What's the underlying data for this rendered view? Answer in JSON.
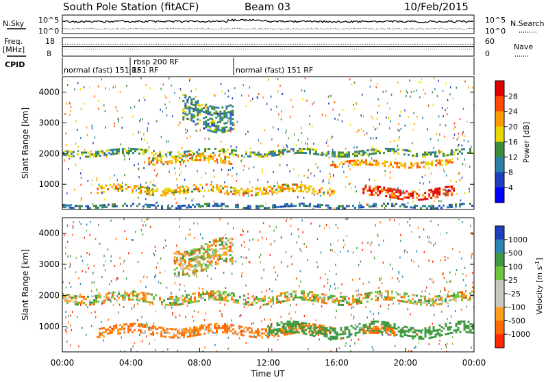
{
  "header": {
    "station": "South Pole Station (fitACF)",
    "beam": "Beam 03",
    "date": "10/Feb/2015"
  },
  "noise_panel": {
    "left_label": "N.Sky",
    "left_top_tick": "10^5",
    "left_bottom_tick": "10^0",
    "right_label": "N.Search",
    "right_top_tick": "10^5",
    "right_bottom_tick": "10^0"
  },
  "freq_panel": {
    "left_label_1": "Freq.",
    "left_label_2": "[MHz]",
    "left_top_tick": "18",
    "left_bottom_tick": "8",
    "right_label": "Nave",
    "right_top_tick": "60",
    "right_bottom_tick": "0"
  },
  "cpid_panel": {
    "label": "CPID",
    "segments": [
      {
        "text": "normal (fast) 151 RF",
        "start_h": 0,
        "end_h": 4
      },
      {
        "text": "rbsp 200 RF",
        "start_h": 4,
        "end_h": 10,
        "raised": true
      },
      {
        "text": "151 RF",
        "start_h": 4,
        "end_h": 4.0
      },
      {
        "text": "normal (fast) 151 RF",
        "start_h": 10,
        "end_h": 24
      }
    ]
  },
  "power_colorbar": {
    "label": "Power [dB]",
    "ticks": [
      "28",
      "24",
      "20",
      "16",
      "12",
      "8",
      "4"
    ],
    "colors": [
      "#e00000",
      "#ff4a00",
      "#ff9a00",
      "#e8d800",
      "#3d8c3d",
      "#2b7fa8",
      "#1f3fbf",
      "#0000ff"
    ]
  },
  "velocity_colorbar": {
    "label": "Velocity [m s^-1]",
    "label_main": "Velocity [m s",
    "label_exp": "-1",
    "label_close": "]",
    "ticks": [
      "1000",
      "500",
      "100",
      "25",
      "-25",
      "-100",
      "-500",
      "-1000"
    ],
    "colors": [
      "#203fbf",
      "#2c86b4",
      "#3f9a3f",
      "#6ec63c",
      "#c8c8c0",
      "#c8c8c0",
      "#ff9d1c",
      "#ff6a00",
      "#ff2a00"
    ]
  },
  "chart_data": [
    {
      "type": "heatmap",
      "title": "",
      "xlabel": "",
      "ylabel": "Slant Range [km]",
      "xlim": [
        0,
        24
      ],
      "ylim": [
        180,
        4500
      ],
      "ytick_labels": [
        "1000",
        "2000",
        "3000",
        "4000"
      ],
      "ytick_values": [
        1000,
        2000,
        3000,
        4000
      ],
      "colorbar_label": "Power [dB]",
      "colorbar_ticks": [
        4,
        8,
        12,
        16,
        20,
        24,
        28
      ],
      "bands": [
        {
          "x_start": 0,
          "x_end": 24,
          "y_center": 2000,
          "y_width": 250,
          "value": 14
        },
        {
          "x_start": 5,
          "x_end": 10,
          "y_center": 1800,
          "y_width": 300,
          "value": 20
        },
        {
          "x_start": 15.5,
          "x_end": 23,
          "y_center": 1650,
          "y_width": 220,
          "value": 22
        },
        {
          "x_start": 2,
          "x_end": 16,
          "y_center": 800,
          "y_width": 300,
          "value": 20
        },
        {
          "x_start": 17.5,
          "x_end": 23,
          "y_center": 700,
          "y_width": 350,
          "value": 28
        },
        {
          "x_start": 7,
          "x_end": 10,
          "y_center": 3300,
          "y_width": 900,
          "value": 12
        },
        {
          "x_start": 0,
          "x_end": 24,
          "y_center": 280,
          "y_width": 160,
          "value": 10
        }
      ]
    },
    {
      "type": "heatmap",
      "title": "",
      "xlabel": "Time UT",
      "ylabel": "Slant Range [km]",
      "xlim": [
        0,
        24
      ],
      "ylim": [
        180,
        4500
      ],
      "xtick_labels": [
        "00:00",
        "04:00",
        "08:00",
        "12:00",
        "16:00",
        "20:00",
        "00:00"
      ],
      "xtick_values": [
        0,
        4,
        8,
        12,
        16,
        20,
        24
      ],
      "ytick_labels": [
        "1000",
        "2000",
        "3000",
        "4000"
      ],
      "ytick_values": [
        1000,
        2000,
        3000,
        4000
      ],
      "colorbar_label": "Velocity [m s^-1]",
      "colorbar_ticks": [
        -1000,
        -500,
        -100,
        -25,
        25,
        100,
        500,
        1000
      ],
      "bands": [
        {
          "x_start": 0,
          "x_end": 24,
          "y_center": 1900,
          "y_width": 350,
          "value": 0
        },
        {
          "x_start": 6.5,
          "x_end": 10,
          "y_center": 3200,
          "y_width": 900,
          "value": 0
        },
        {
          "x_start": 2,
          "x_end": 16,
          "y_center": 850,
          "y_width": 350,
          "value": -150
        },
        {
          "x_start": 12,
          "x_end": 24,
          "y_center": 850,
          "y_width": 450,
          "value": 300
        },
        {
          "x_start": 17.5,
          "x_end": 19.5,
          "y_center": 800,
          "y_width": 300,
          "value": -200
        }
      ]
    }
  ]
}
